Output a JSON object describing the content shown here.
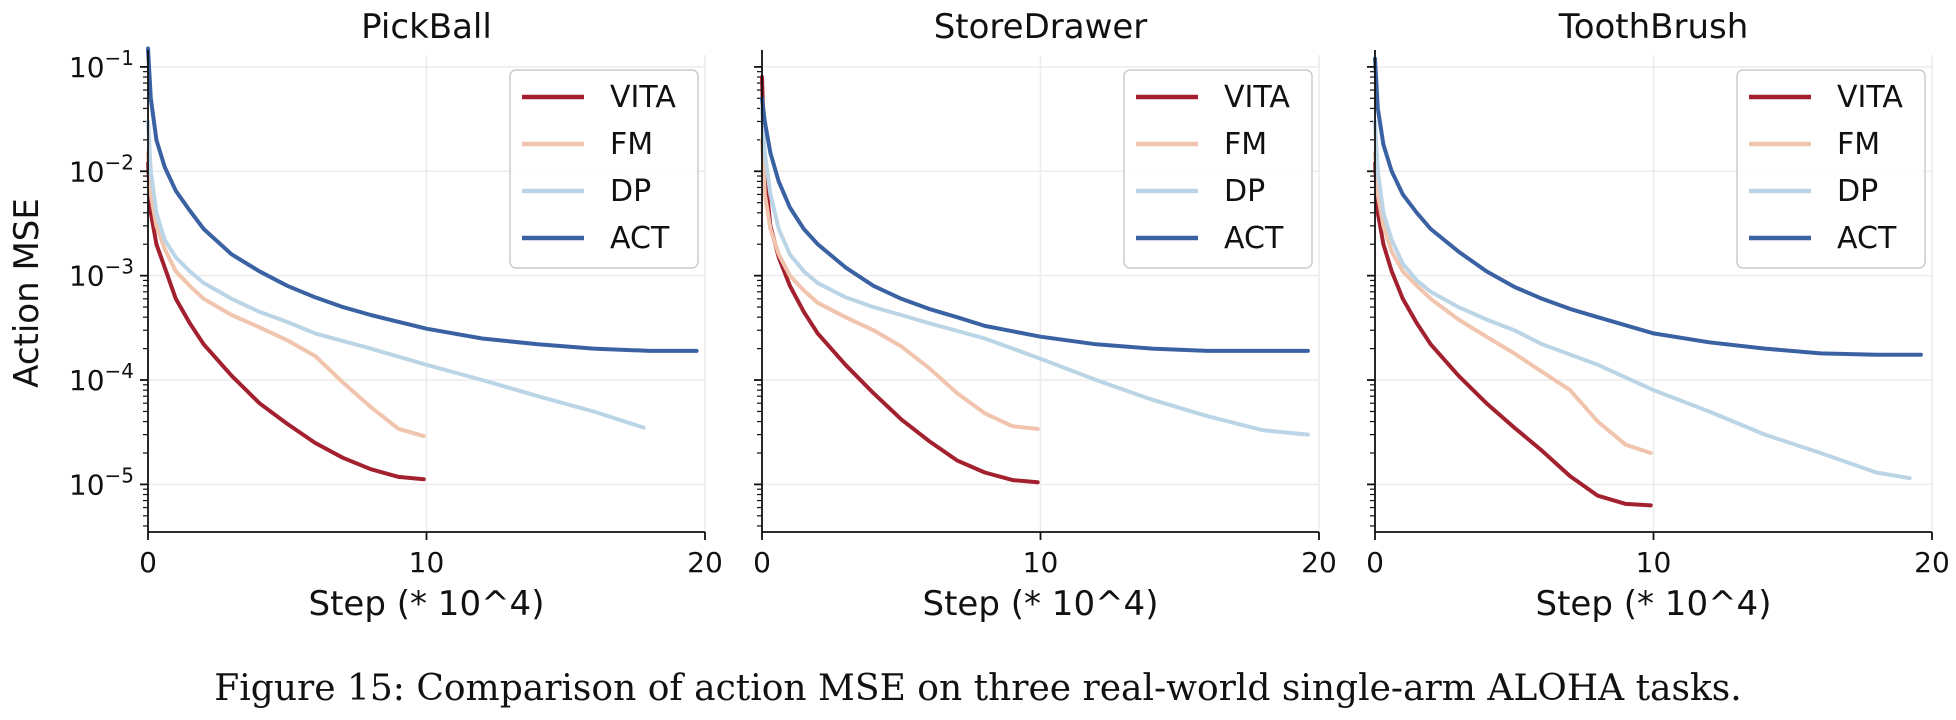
{
  "chart_data": {
    "type": "line",
    "ylabel": "Action MSE",
    "yscale": "log",
    "ylim": [
      3.5e-06,
      0.13
    ],
    "xlim": [
      0,
      20
    ],
    "xticks": [
      0,
      10,
      20
    ],
    "yticks": [
      {
        "value": 0.1,
        "base": "10",
        "exp": "−1"
      },
      {
        "value": 0.01,
        "base": "10",
        "exp": "−2"
      },
      {
        "value": 0.001,
        "base": "10",
        "exp": "−3"
      },
      {
        "value": 0.0001,
        "base": "10",
        "exp": "−4"
      },
      {
        "value": 1e-05,
        "base": "10",
        "exp": "−5"
      }
    ],
    "xlabel": "Step (* 10^4)",
    "legend_position": "top-right",
    "series_styles": [
      {
        "name": "VITA",
        "color": "#a3202e"
      },
      {
        "name": "FM",
        "color": "#f0c4ad"
      },
      {
        "name": "DP",
        "color": "#bcd5e6"
      },
      {
        "name": "ACT",
        "color": "#3a62a3"
      }
    ],
    "panels": [
      {
        "title": "PickBall",
        "series": [
          {
            "name": "VITA",
            "x": [
              0,
              0.1,
              0.3,
              0.6,
              1,
              1.5,
              2,
              3,
              4,
              5,
              6,
              7,
              8,
              9,
              9.9
            ],
            "y": [
              0.012,
              0.004,
              0.002,
              0.0012,
              0.0006,
              0.00035,
              0.00022,
              0.00011,
              6e-05,
              3.8e-05,
              2.5e-05,
              1.8e-05,
              1.4e-05,
              1.18e-05,
              1.12e-05
            ]
          },
          {
            "name": "FM",
            "x": [
              0,
              0.1,
              0.3,
              0.6,
              1,
              1.5,
              2,
              3,
              4,
              5,
              6,
              7,
              8,
              9,
              9.9
            ],
            "y": [
              0.015,
              0.006,
              0.003,
              0.0018,
              0.0011,
              0.0008,
              0.0006,
              0.00042,
              0.00032,
              0.00024,
              0.00017,
              9.5e-05,
              5.5e-05,
              3.4e-05,
              2.9e-05
            ]
          },
          {
            "name": "DP",
            "x": [
              0,
              0.1,
              0.3,
              0.6,
              1,
              1.5,
              2,
              3,
              4,
              5,
              6,
              8,
              10,
              12,
              14,
              16,
              17.8
            ],
            "y": [
              0.03,
              0.01,
              0.004,
              0.0022,
              0.0015,
              0.0011,
              0.00085,
              0.0006,
              0.00045,
              0.00036,
              0.00028,
              0.0002,
              0.00014,
              0.0001,
              7e-05,
              5e-05,
              3.5e-05
            ]
          },
          {
            "name": "ACT",
            "x": [
              0,
              0.1,
              0.3,
              0.6,
              1,
              1.5,
              2,
              3,
              4,
              5,
              6,
              7,
              8,
              10,
              12,
              14,
              16,
              18,
              19.7
            ],
            "y": [
              0.15,
              0.05,
              0.02,
              0.011,
              0.0065,
              0.0042,
              0.0028,
              0.0016,
              0.0011,
              0.0008,
              0.00062,
              0.0005,
              0.00042,
              0.00031,
              0.00025,
              0.00022,
              0.0002,
              0.00019,
              0.00019
            ]
          }
        ]
      },
      {
        "title": "StoreDrawer",
        "series": [
          {
            "name": "VITA",
            "x": [
              0,
              0.1,
              0.3,
              0.6,
              1,
              1.5,
              2,
              3,
              4,
              5,
              6,
              7,
              8,
              9,
              9.9
            ],
            "y": [
              0.08,
              0.01,
              0.003,
              0.0015,
              0.0008,
              0.00045,
              0.00028,
              0.00014,
              7.5e-05,
              4.2e-05,
              2.6e-05,
              1.7e-05,
              1.3e-05,
              1.1e-05,
              1.05e-05
            ]
          },
          {
            "name": "FM",
            "x": [
              0,
              0.1,
              0.3,
              0.6,
              1,
              1.5,
              2,
              3,
              4,
              5,
              6,
              7,
              8,
              9,
              9.9
            ],
            "y": [
              0.02,
              0.006,
              0.0028,
              0.0016,
              0.001,
              0.00072,
              0.00055,
              0.0004,
              0.0003,
              0.00021,
              0.00013,
              7.5e-05,
              4.8e-05,
              3.6e-05,
              3.4e-05
            ]
          },
          {
            "name": "DP",
            "x": [
              0,
              0.1,
              0.3,
              0.6,
              1,
              1.5,
              2,
              3,
              4,
              5,
              6,
              8,
              10,
              12,
              14,
              16,
              18,
              19.6
            ],
            "y": [
              0.04,
              0.015,
              0.006,
              0.0028,
              0.0016,
              0.0011,
              0.00085,
              0.00062,
              0.0005,
              0.00042,
              0.00035,
              0.00025,
              0.00016,
              0.0001,
              6.5e-05,
              4.5e-05,
              3.3e-05,
              3e-05
            ]
          },
          {
            "name": "ACT",
            "x": [
              0,
              0.1,
              0.3,
              0.6,
              1,
              1.5,
              2,
              3,
              4,
              5,
              6,
              7,
              8,
              10,
              12,
              14,
              16,
              18,
              19.6
            ],
            "y": [
              0.05,
              0.03,
              0.015,
              0.008,
              0.0045,
              0.0028,
              0.002,
              0.0012,
              0.0008,
              0.0006,
              0.00048,
              0.0004,
              0.00033,
              0.00026,
              0.00022,
              0.0002,
              0.00019,
              0.00019,
              0.00019
            ]
          }
        ]
      },
      {
        "title": "ToothBrush",
        "series": [
          {
            "name": "VITA",
            "x": [
              0,
              0.1,
              0.3,
              0.6,
              1,
              1.5,
              2,
              3,
              4,
              5,
              6,
              7,
              8,
              9,
              9.9
            ],
            "y": [
              0.012,
              0.004,
              0.002,
              0.0011,
              0.0006,
              0.00035,
              0.00022,
              0.00011,
              6e-05,
              3.5e-05,
              2.1e-05,
              1.2e-05,
              7.8e-06,
              6.5e-06,
              6.3e-06
            ]
          },
          {
            "name": "FM",
            "x": [
              0,
              0.1,
              0.3,
              0.6,
              1,
              1.5,
              2,
              3,
              4,
              5,
              6,
              7,
              8,
              9,
              9.9
            ],
            "y": [
              0.015,
              0.006,
              0.003,
              0.0017,
              0.0011,
              0.0008,
              0.0006,
              0.00038,
              0.00026,
              0.00018,
              0.00012,
              8e-05,
              4e-05,
              2.4e-05,
              2e-05
            ]
          },
          {
            "name": "DP",
            "x": [
              0,
              0.1,
              0.3,
              0.6,
              1,
              1.5,
              2,
              3,
              4,
              5,
              6,
              8,
              10,
              12,
              14,
              16,
              18,
              19.2
            ],
            "y": [
              0.03,
              0.01,
              0.004,
              0.0022,
              0.0013,
              0.0009,
              0.0007,
              0.0005,
              0.00038,
              0.0003,
              0.00022,
              0.00014,
              8e-05,
              5e-05,
              3e-05,
              2e-05,
              1.3e-05,
              1.15e-05
            ]
          },
          {
            "name": "ACT",
            "x": [
              0,
              0.1,
              0.3,
              0.6,
              1,
              1.5,
              2,
              3,
              4,
              5,
              6,
              7,
              8,
              10,
              12,
              14,
              16,
              18,
              19.6
            ],
            "y": [
              0.12,
              0.04,
              0.018,
              0.01,
              0.006,
              0.004,
              0.0028,
              0.0017,
              0.0011,
              0.00078,
              0.0006,
              0.00048,
              0.0004,
              0.00028,
              0.00023,
              0.0002,
              0.00018,
              0.000175,
              0.000175
            ]
          }
        ]
      }
    ]
  },
  "caption": "Figure 15: Comparison of action MSE on three real-world single-arm ALOHA tasks."
}
